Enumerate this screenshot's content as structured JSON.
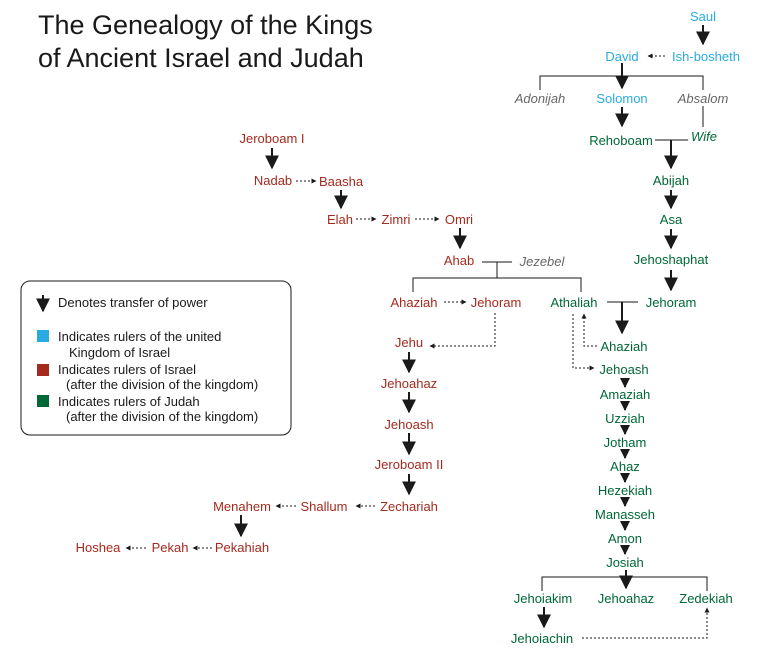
{
  "title": {
    "line1": "The Genealogy of the Kings",
    "line2": "of Ancient Israel and Judah"
  },
  "colors": {
    "united": "#29abe2",
    "israel": "#a52a1e",
    "judah": "#006837",
    "other": "#666666",
    "line": "#1a1a1a"
  },
  "legend": {
    "arrow_text": "Denotes transfer of power",
    "united_line1": "Indicates rulers of the united",
    "united_line2": "Kingdom of Israel",
    "israel_line1": "Indicates rulers of Israel",
    "israel_line2": "(after the division of the kingdom)",
    "judah_line1": "Indicates rulers of Judah",
    "judah_line2": "(after the division of the kingdom)"
  },
  "people": {
    "saul": "Saul",
    "david": "David",
    "ishbosheth": "Ish-bosheth",
    "adonijah": "Adonijah",
    "solomon": "Solomon",
    "absalom": "Absalom",
    "rehoboam": "Rehoboam",
    "wife": "Wife",
    "abijah": "Abijah",
    "asa": "Asa",
    "jehoshaphat": "Jehoshaphat",
    "jehoram_j": "Jehoram",
    "athaliah": "Athaliah",
    "ahaziah_j": "Ahaziah",
    "jehoash_j": "Jehoash",
    "amaziah": "Amaziah",
    "uzziah": "Uzziah",
    "jotham": "Jotham",
    "ahaz": "Ahaz",
    "hezekiah": "Hezekiah",
    "manasseh": "Manasseh",
    "amon": "Amon",
    "josiah": "Josiah",
    "jehoiakim": "Jehoiakim",
    "jehoahaz_j": "Jehoahaz",
    "zedekiah": "Zedekiah",
    "jehoiachin": "Jehoiachin",
    "jeroboam1": "Jeroboam I",
    "nadab": "Nadab",
    "baasha": "Baasha",
    "elah": "Elah",
    "zimri": "Zimri",
    "omri": "Omri",
    "ahab": "Ahab",
    "jezebel": "Jezebel",
    "ahaziah_i": "Ahaziah",
    "jehoram_i": "Jehoram",
    "jehu": "Jehu",
    "jehoahaz_i": "Jehoahaz",
    "jehoash_i": "Jehoash",
    "jeroboam2": "Jeroboam II",
    "zechariah": "Zechariah",
    "shallum": "Shallum",
    "menahem": "Menahem",
    "pekahiah": "Pekahiah",
    "pekah": "Pekah",
    "hoshea": "Hoshea"
  }
}
